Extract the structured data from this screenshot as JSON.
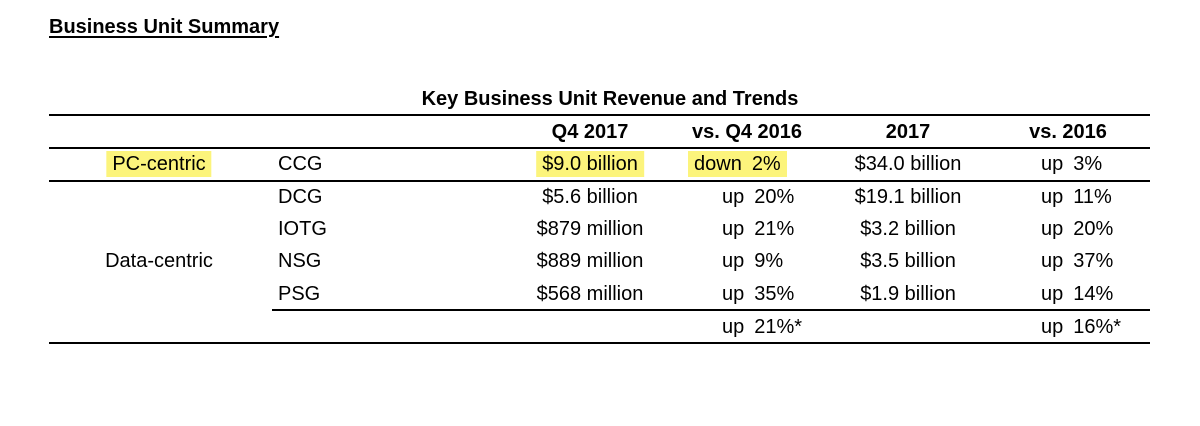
{
  "colors": {
    "highlight": "#fcf47c",
    "text": "#000000",
    "rule": "#000000"
  },
  "heading": "Business Unit Summary",
  "table": {
    "title": "Key Business Unit Revenue and Trends",
    "headers": {
      "q4_2017": "Q4 2017",
      "vs_q4_2016": "vs. Q4 2016",
      "year_2017": "2017",
      "vs_2016": "vs. 2016"
    },
    "group_pc": "PC-centric",
    "group_data": "Data-centric",
    "rows": [
      {
        "unit": "CCG",
        "q4": "$9.0 billion",
        "q4_dir": "down",
        "q4_pct": "2%",
        "year": "$34.0 billion",
        "year_dir": "up",
        "year_pct": "3%"
      },
      {
        "unit": "DCG",
        "q4": "$5.6 billion",
        "q4_dir": "up",
        "q4_pct": "20%",
        "year": "$19.1 billion",
        "year_dir": "up",
        "year_pct": "11%"
      },
      {
        "unit": "IOTG",
        "q4": "$879 million",
        "q4_dir": "up",
        "q4_pct": "21%",
        "year": "$3.2 billion",
        "year_dir": "up",
        "year_pct": "20%"
      },
      {
        "unit": "NSG",
        "q4": "$889 million",
        "q4_dir": "up",
        "q4_pct": "9%",
        "year": "$3.5 billion",
        "year_dir": "up",
        "year_pct": "37%"
      },
      {
        "unit": "PSG",
        "q4": "$568 million",
        "q4_dir": "up",
        "q4_pct": "35%",
        "year": "$1.9 billion",
        "year_dir": "up",
        "year_pct": "14%"
      }
    ],
    "total": {
      "q4_dir": "up",
      "q4_pct": "21%*",
      "year_dir": "up",
      "year_pct": "16%*"
    }
  }
}
